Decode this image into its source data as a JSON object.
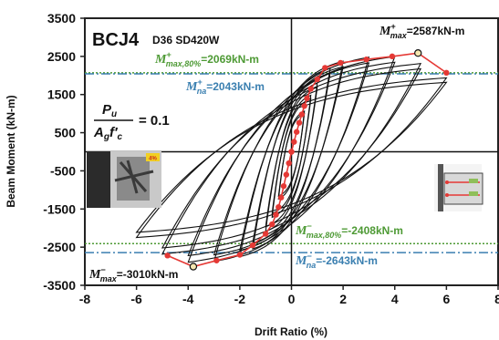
{
  "chart_data": {
    "type": "line",
    "xlabel": "Drift Ratio (%)",
    "ylabel": "Beam Moment (kN-m)",
    "xlim": [
      -8,
      8
    ],
    "ylim": [
      -3500,
      3500
    ],
    "xticks": [
      -8,
      -6,
      -4,
      -2,
      0,
      2,
      4,
      6,
      8
    ],
    "yticks": [
      3500,
      2500,
      1500,
      500,
      -500,
      -1500,
      -2500,
      -3500
    ],
    "grid": false,
    "specimen": "BCJ4",
    "specimen_detail": "D36 SD420W",
    "axial_ratio": {
      "numerator": "P",
      "numerator_sub": "u",
      "denominator": "A",
      "denominator_sub": "g",
      "denominator_prime": "f′",
      "denominator_prime_sub": "c",
      "value": "= 0.1"
    },
    "inset_label": "4%",
    "annotations": [
      {
        "id": "mmax-pos",
        "symbol": "M",
        "sup": "+",
        "sub": "max",
        "value": "=2587kN-m",
        "color": "#111111"
      },
      {
        "id": "mmax80-pos",
        "symbol": "M",
        "sup": "+",
        "sub": "max,80%",
        "value": "=2069kN-m",
        "color": "#4e9a35"
      },
      {
        "id": "mna-pos",
        "symbol": "M",
        "sup": "+",
        "sub": "na",
        "value": "=2043kN-m",
        "color": "#3a7fb0"
      },
      {
        "id": "mmax80-neg",
        "symbol": "M",
        "sup": "−",
        "sub": "max,80%",
        "value": "=-2408kN-m",
        "color": "#4e9a35"
      },
      {
        "id": "mna-neg",
        "symbol": "M",
        "sup": "−",
        "sub": "na",
        "value": "=-2643kN-m",
        "color": "#3a7fb0"
      },
      {
        "id": "mmax-neg",
        "symbol": "M",
        "sup": "−",
        "sub": "max",
        "value": "=-3010kN-m",
        "color": "#111111"
      }
    ],
    "reference_lines": [
      {
        "name": "M+max,80%",
        "y": 2069,
        "color": "#4e9a35",
        "style": "dotted"
      },
      {
        "name": "M+na",
        "y": 2043,
        "color": "#3a7fb0",
        "style": "dashdot"
      },
      {
        "name": "M-max,80%",
        "y": -2408,
        "color": "#4e9a35",
        "style": "dotted"
      },
      {
        "name": "M-na",
        "y": -2643,
        "color": "#3a7fb0",
        "style": "dashdot"
      }
    ],
    "series": [
      {
        "style": "hysteresis",
        "color": "#111111",
        "loops": [
          0.5,
          0.75,
          1.0,
          1.5,
          2.0,
          3.0,
          4.0,
          5.0,
          6.0
        ]
      },
      {
        "style": "envelope",
        "color": "#e53935",
        "positive": {
          "x": [
            0,
            0.1,
            0.2,
            0.3,
            0.4,
            0.5,
            0.6,
            0.75,
            1.0,
            1.3,
            1.9,
            2.9,
            3.9,
            4.9,
            6.0
          ],
          "y": [
            0,
            260,
            520,
            760,
            980,
            1200,
            1400,
            1650,
            1900,
            2200,
            2330,
            2420,
            2500,
            2587,
            2070
          ]
        },
        "negative": {
          "x": [
            0,
            -0.1,
            -0.2,
            -0.3,
            -0.4,
            -0.5,
            -0.6,
            -0.75,
            -1.0,
            -1.5,
            -2.0,
            -2.9,
            -3.8,
            -4.8
          ],
          "y": [
            0,
            -300,
            -600,
            -900,
            -1200,
            -1450,
            -1650,
            -1900,
            -2150,
            -2450,
            -2700,
            -2850,
            -3010,
            -2720
          ]
        }
      }
    ],
    "peak_markers": [
      {
        "x": 4.9,
        "y": 2587
      },
      {
        "x": -3.8,
        "y": -3010
      }
    ]
  }
}
